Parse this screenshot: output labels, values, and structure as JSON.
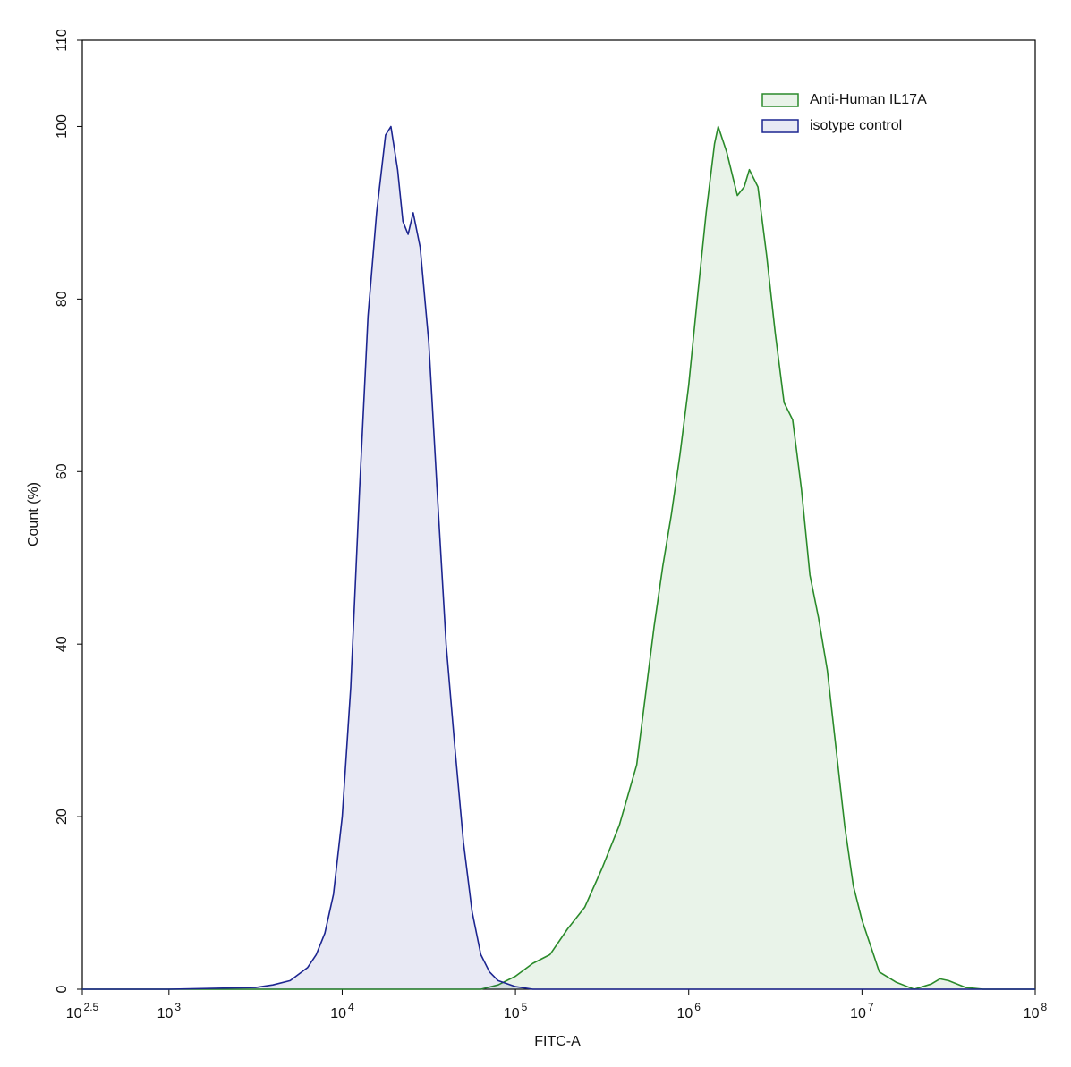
{
  "chart_data": {
    "type": "histogram-overlay",
    "xlabel": "FITC-A",
    "ylabel": "Count (%)",
    "xscale": "log",
    "xlim": [
      316.23,
      100000000
    ],
    "xticks": [
      {
        "value": 316.23,
        "label": "10^2.5"
      },
      {
        "value": 1000,
        "label": "10^3"
      },
      {
        "value": 10000,
        "label": "10^4"
      },
      {
        "value": 100000,
        "label": "10^5"
      },
      {
        "value": 1000000,
        "label": "10^6"
      },
      {
        "value": 10000000,
        "label": "10^7"
      },
      {
        "value": 100000000,
        "label": "10^8"
      }
    ],
    "ylim": [
      0,
      110
    ],
    "yticks": [
      0,
      20,
      40,
      60,
      80,
      100,
      110
    ],
    "legend": "upper right",
    "series": [
      {
        "name": "Anti-Human IL17A",
        "color": "#2a8a2a",
        "x": [
          316,
          63100,
          79400,
          100000,
          126000,
          158000,
          200000,
          251000,
          316000,
          398000,
          501000,
          562000,
          631000,
          708000,
          794000,
          891000,
          1000000,
          1120000,
          1260000,
          1410000,
          1480000,
          1660000,
          1910000,
          2090000,
          2240000,
          2510000,
          2820000,
          3160000,
          3550000,
          3980000,
          4470000,
          5010000,
          5620000,
          6310000,
          7080000,
          7940000,
          8910000,
          10000000,
          12600000,
          15800000,
          20000000,
          25100000,
          28200000,
          31600000,
          39800000,
          50100000,
          100000000
        ],
        "values": [
          0,
          0,
          0.5,
          1.5,
          3,
          4,
          7,
          9.5,
          14,
          19,
          26,
          34,
          42,
          49,
          55,
          62,
          70,
          80,
          90,
          98,
          100,
          97,
          92,
          93,
          95,
          93,
          85,
          76,
          68,
          66,
          58,
          48,
          43,
          37,
          28,
          19,
          12,
          8,
          2,
          0.8,
          0,
          0.6,
          1.2,
          1,
          0.2,
          0,
          0
        ]
      },
      {
        "name": "isotype control",
        "color": "#1c2590",
        "x": [
          316,
          1000,
          3160,
          3980,
          5010,
          6310,
          7080,
          7940,
          8910,
          10000,
          11200,
          12600,
          14100,
          15800,
          17800,
          19100,
          20900,
          22400,
          24000,
          25700,
          28200,
          31600,
          35500,
          39800,
          44700,
          50100,
          56200,
          63100,
          70800,
          79400,
          100000,
          126000,
          100000000
        ],
        "values": [
          0,
          0,
          0.2,
          0.5,
          1,
          2.5,
          4,
          6.5,
          11,
          20,
          35,
          58,
          78,
          90,
          99,
          100,
          95,
          89,
          87.5,
          90,
          86,
          75,
          57,
          40,
          28,
          17,
          9,
          4,
          2,
          1,
          0.3,
          0,
          0
        ]
      }
    ]
  }
}
